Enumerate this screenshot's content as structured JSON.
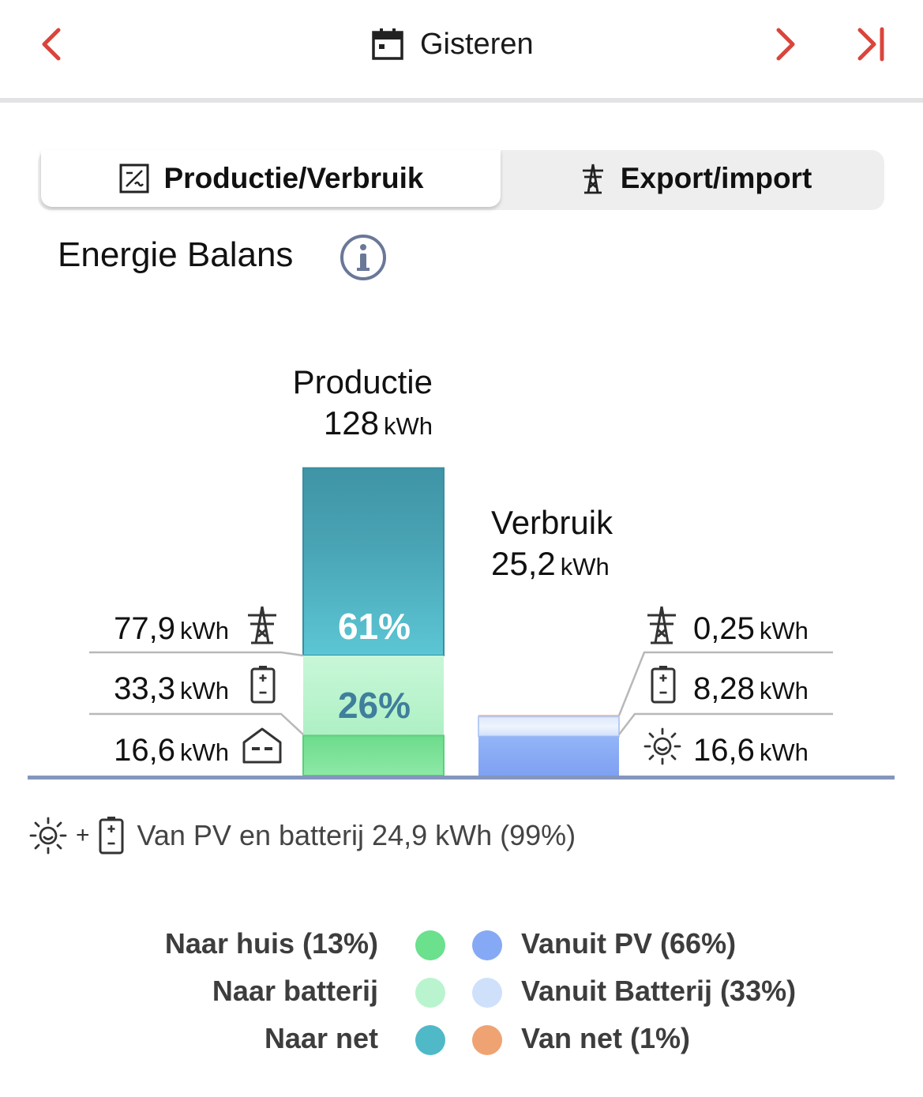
{
  "header": {
    "date_label": "Gisteren",
    "prev_icon": "chevron-left-icon",
    "next_icon": "chevron-right-icon",
    "last_icon": "skip-to-end-icon",
    "calendar_icon": "calendar-icon",
    "accent_color": "#d9453c"
  },
  "tabs": [
    {
      "label": "Productie/Verbruik",
      "icon": "inverter-icon",
      "active": true
    },
    {
      "label": "Export/import",
      "icon": "power-pylon-icon",
      "active": false
    }
  ],
  "section": {
    "title": "Energie Balans",
    "info_icon": "info-icon"
  },
  "chart_data": {
    "type": "bar",
    "stacked": true,
    "categories": [
      "Productie",
      "Verbruik"
    ],
    "production": {
      "label": "Productie",
      "total": "128",
      "unit": "kWh",
      "segments": [
        {
          "name": "Naar net",
          "value": 77.9,
          "display": "77,9",
          "unit": "kWh",
          "percent_label": "61%",
          "icon": "power-pylon-icon",
          "color": "#4fb6c6"
        },
        {
          "name": "Naar batterij",
          "value": 33.3,
          "display": "33,3",
          "unit": "kWh",
          "percent_label": "26%",
          "icon": "battery-icon",
          "color": "#b9f5cf"
        },
        {
          "name": "Naar huis",
          "value": 16.6,
          "display": "16,6",
          "unit": "kWh",
          "percent_label": "",
          "icon": "house-icon",
          "color": "#7de39a"
        }
      ]
    },
    "consumption": {
      "label": "Verbruik",
      "total": "25,2",
      "unit": "kWh",
      "segments": [
        {
          "name": "Van net",
          "value": 0.25,
          "display": "0,25",
          "unit": "kWh",
          "icon": "power-pylon-icon",
          "color": "#f0a070"
        },
        {
          "name": "Vanuit Batterij",
          "value": 8.28,
          "display": "8,28",
          "unit": "kWh",
          "icon": "battery-icon",
          "color": "#cfe0fb"
        },
        {
          "name": "Vanuit PV",
          "value": 16.6,
          "display": "16,6",
          "unit": "kWh",
          "icon": "sun-icon",
          "color": "#86a9f5"
        }
      ]
    }
  },
  "summary": {
    "text": "Van PV en batterij 24,9 kWh (99%)",
    "plus": "+",
    "icons": [
      "sun-icon",
      "battery-icon"
    ]
  },
  "legend": {
    "left": [
      {
        "label": "Naar huis (13%)",
        "color": "#6be08d"
      },
      {
        "label": "Naar batterij",
        "color": "#baf4cf"
      },
      {
        "label": "Naar net",
        "color": "#4fb9c8"
      }
    ],
    "right": [
      {
        "label": "Vanuit PV (66%)",
        "color": "#86a9f5"
      },
      {
        "label": "Vanuit Batterij (33%)",
        "color": "#cfe0fb"
      },
      {
        "label": "Van net (1%)",
        "color": "#efa373"
      }
    ]
  }
}
